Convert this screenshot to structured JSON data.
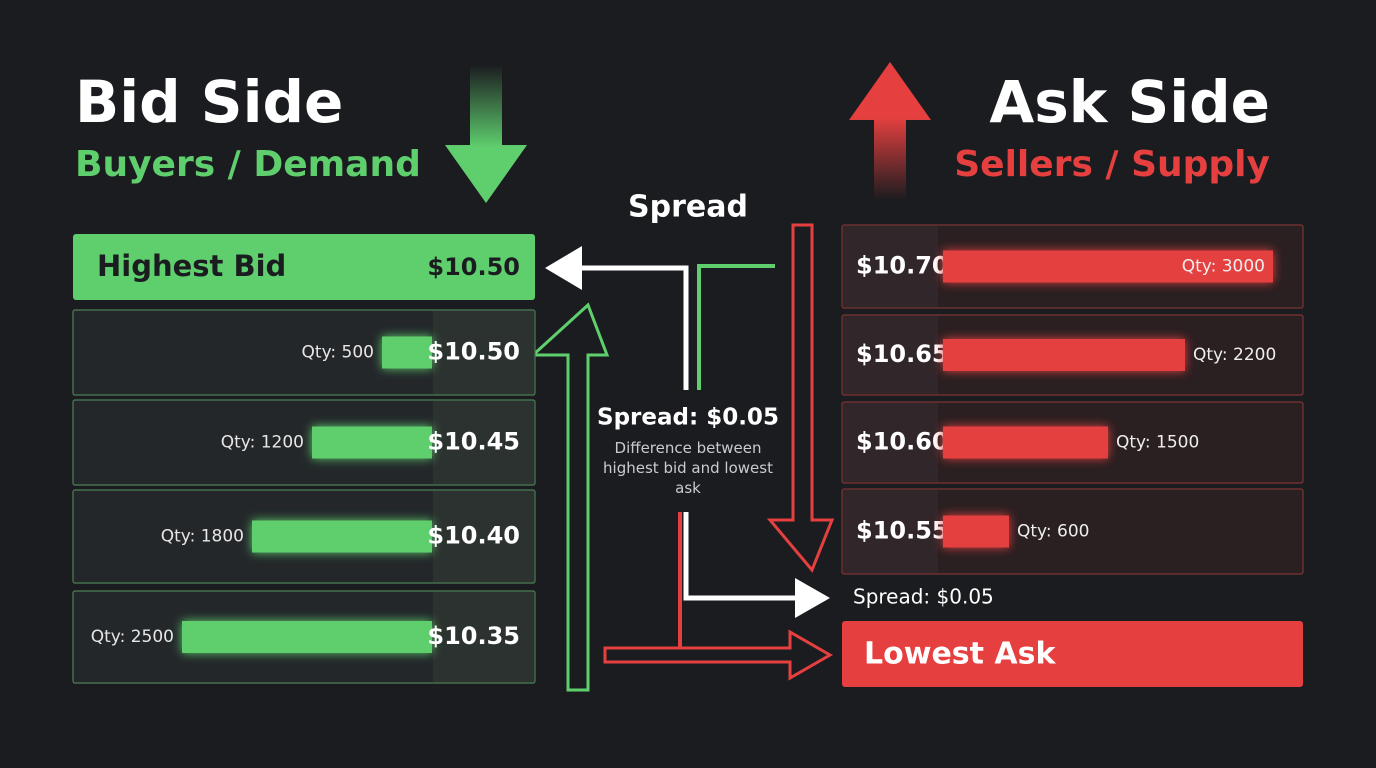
{
  "bid_side": {
    "title": "Bid Side",
    "subtitle": "Buyers / Demand",
    "highest_bid": {
      "label": "Highest Bid",
      "price": "$10.50"
    },
    "levels": [
      {
        "qty": {
          "value": 500,
          "label": "Qty: 500"
        },
        "price": "$10.50"
      },
      {
        "qty": {
          "value": 1200,
          "label": "Qty: 1200"
        },
        "price": "$10.45"
      },
      {
        "qty": {
          "value": 1800,
          "label": "Qty: 1800"
        },
        "price": "$10.40"
      },
      {
        "qty": {
          "value": 2500,
          "label": "Qty: 2500"
        },
        "price": "$10.35"
      }
    ]
  },
  "ask_side": {
    "title": "Ask Side",
    "subtitle": "Sellers / Supply",
    "levels": [
      {
        "price": "$10.70",
        "qty": {
          "value": 3000,
          "label": "Qty: 3000"
        }
      },
      {
        "price": "$10.65",
        "qty": {
          "value": 2200,
          "label": "Qty: 2200"
        }
      },
      {
        "price": "$10.60",
        "qty": {
          "value": 1500,
          "label": "Qty: 1500"
        }
      },
      {
        "price": "$10.55",
        "qty": {
          "value": 600,
          "label": "Qty: 600"
        }
      }
    ],
    "spread_label": "Spread: $0.05",
    "lowest_ask": {
      "label": "Lowest Ask"
    }
  },
  "spread": {
    "title": "Spread",
    "label": "Spread: $0.05",
    "description": "Difference between highest bid and lowest ask"
  }
}
